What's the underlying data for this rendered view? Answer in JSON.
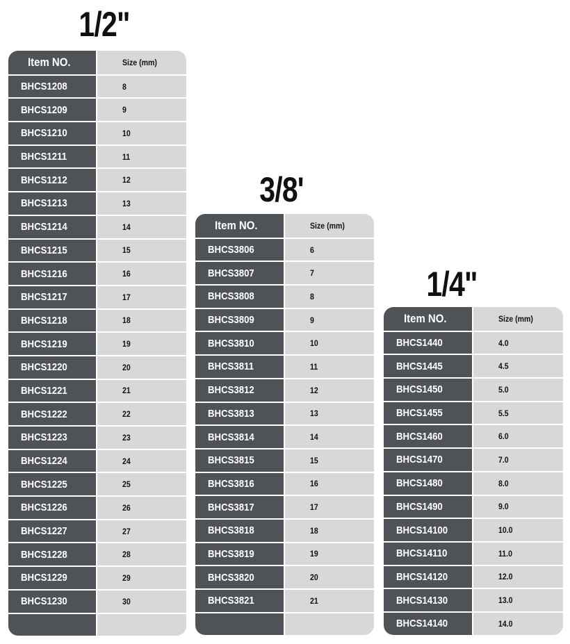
{
  "tables": [
    {
      "title": "1/2\"",
      "header": {
        "item": "Item NO.",
        "size": "Size (mm)"
      },
      "rows": [
        [
          "BHCS1208",
          "8"
        ],
        [
          "BHCS1209",
          "9"
        ],
        [
          "BHCS1210",
          "10"
        ],
        [
          "BHCS1211",
          "11"
        ],
        [
          "BHCS1212",
          "12"
        ],
        [
          "BHCS1213",
          "13"
        ],
        [
          "BHCS1214",
          "14"
        ],
        [
          "BHCS1215",
          "15"
        ],
        [
          "BHCS1216",
          "16"
        ],
        [
          "BHCS1217",
          "17"
        ],
        [
          "BHCS1218",
          "18"
        ],
        [
          "BHCS1219",
          "19"
        ],
        [
          "BHCS1220",
          "20"
        ],
        [
          "BHCS1221",
          "21"
        ],
        [
          "BHCS1222",
          "22"
        ],
        [
          "BHCS1223",
          "23"
        ],
        [
          "BHCS1224",
          "24"
        ],
        [
          "BHCS1225",
          "25"
        ],
        [
          "BHCS1226",
          "26"
        ],
        [
          "BHCS1227",
          "27"
        ],
        [
          "BHCS1228",
          "28"
        ],
        [
          "BHCS1229",
          "29"
        ],
        [
          "BHCS1230",
          "30"
        ],
        [
          "",
          ""
        ]
      ]
    },
    {
      "title": "3/8'",
      "header": {
        "item": "Item NO.",
        "size": "Size (mm)"
      },
      "rows": [
        [
          "BHCS3806",
          "6"
        ],
        [
          "BHCS3807",
          "7"
        ],
        [
          "BHCS3808",
          "8"
        ],
        [
          "BHCS3809",
          "9"
        ],
        [
          "BHCS3810",
          "10"
        ],
        [
          "BHCS3811",
          "11"
        ],
        [
          "BHCS3812",
          "12"
        ],
        [
          "BHCS3813",
          "13"
        ],
        [
          "BHCS3814",
          "14"
        ],
        [
          "BHCS3815",
          "15"
        ],
        [
          "BHCS3816",
          "16"
        ],
        [
          "BHCS3817",
          "17"
        ],
        [
          "BHCS3818",
          "18"
        ],
        [
          "BHCS3819",
          "19"
        ],
        [
          "BHCS3820",
          "20"
        ],
        [
          "BHCS3821",
          "21"
        ],
        [
          "",
          ""
        ]
      ]
    },
    {
      "title": "1/4\"",
      "header": {
        "item": "Item NO.",
        "size": "Size (mm)"
      },
      "rows": [
        [
          "BHCS1440",
          "4.0"
        ],
        [
          "BHCS1445",
          "4.5"
        ],
        [
          "BHCS1450",
          "5.0"
        ],
        [
          "BHCS1455",
          "5.5"
        ],
        [
          "BHCS1460",
          "6.0"
        ],
        [
          "BHCS1470",
          "7.0"
        ],
        [
          "BHCS1480",
          "8.0"
        ],
        [
          "BHCS1490",
          "9.0"
        ],
        [
          "BHCS14100",
          "10.0"
        ],
        [
          "BHCS14110",
          "11.0"
        ],
        [
          "BHCS14120",
          "12.0"
        ],
        [
          "BHCS14130",
          "13.0"
        ],
        [
          "BHCS14140",
          "14.0"
        ]
      ]
    }
  ],
  "colors": {
    "item_column": "#4f5357",
    "size_column": "#d8d8d8"
  }
}
